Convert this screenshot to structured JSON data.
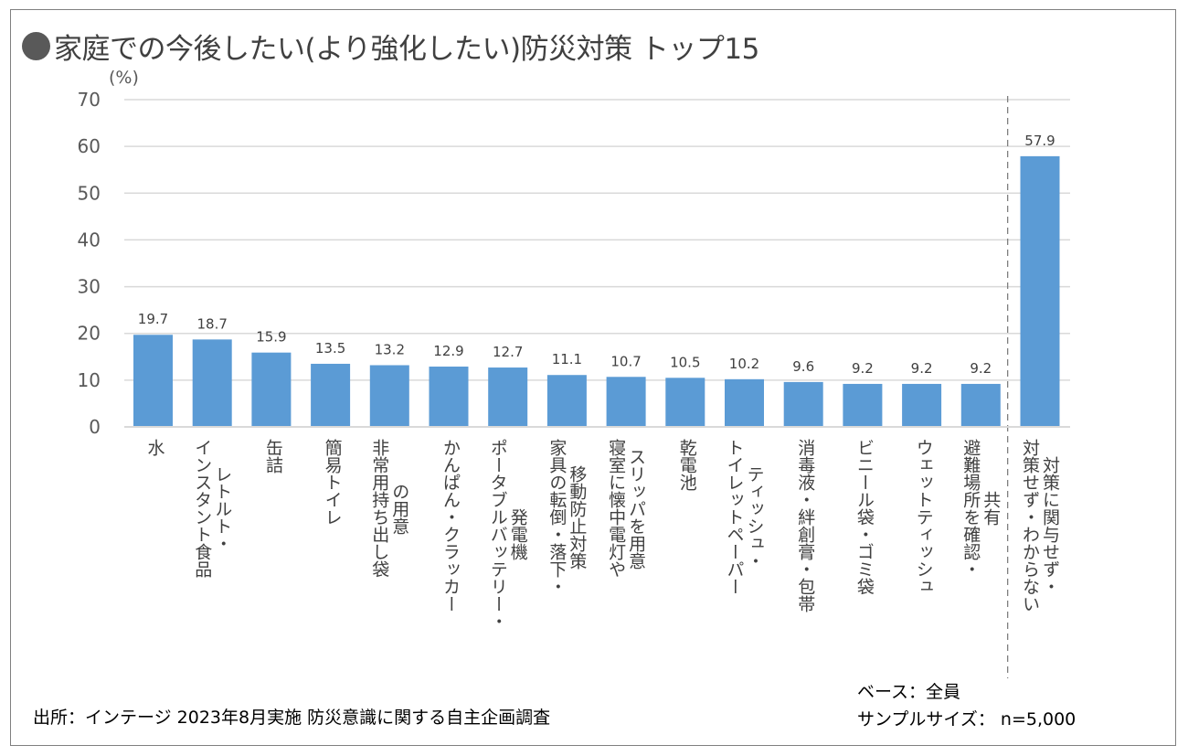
{
  "chart_data": {
    "type": "bar",
    "title": "家庭での今後したい(より強化したい)防災対策 トップ15",
    "title_marker": "●",
    "ylabel": "(%)",
    "xlabel": "",
    "ylim": [
      0,
      70
    ],
    "yticks": [
      0,
      10,
      20,
      30,
      40,
      50,
      60,
      70
    ],
    "grid": true,
    "bar_color": "#5b9bd5",
    "categories": [
      {
        "label": "水",
        "lines": [
          "水"
        ]
      },
      {
        "label": "レトルト・インスタント食品",
        "lines": [
          "インスタント食品",
          "レトルト・"
        ]
      },
      {
        "label": "缶詰",
        "lines": [
          "缶詰"
        ]
      },
      {
        "label": "簡易トイレ",
        "lines": [
          "簡易トイレ"
        ]
      },
      {
        "label": "非常用持ち出し袋の用意",
        "lines": [
          "非常用持ち出し袋",
          "の用意"
        ]
      },
      {
        "label": "かんぱん・クラッカー",
        "lines": [
          "かんぱん・クラッカー"
        ]
      },
      {
        "label": "ポータブルバッテリー・発電機",
        "lines": [
          "ポータブルバッテリー・",
          "発電機"
        ]
      },
      {
        "label": "家具の転倒・落下・移動防止対策",
        "lines": [
          "家具の転倒・落下・",
          "移動防止対策"
        ]
      },
      {
        "label": "寝室に懐中電灯やスリッパを用意",
        "lines": [
          "寝室に懐中電灯や",
          "スリッパを用意"
        ]
      },
      {
        "label": "乾電池",
        "lines": [
          "乾電池"
        ]
      },
      {
        "label": "ティッシュ・トイレットペーパー",
        "lines": [
          "トイレットペーパー",
          "ティッシュ・"
        ]
      },
      {
        "label": "消毒液・絆創膏・包帯",
        "lines": [
          "消毒液・絆創膏・包帯"
        ]
      },
      {
        "label": "ビニール袋・ゴミ袋",
        "lines": [
          "ビニール袋・ゴミ袋"
        ]
      },
      {
        "label": "ウェットティッシュ",
        "lines": [
          "ウェットティッシュ"
        ]
      },
      {
        "label": "避難場所を確認・共有",
        "lines": [
          "避難場所を確認・",
          "共有"
        ]
      },
      {
        "label": "対策に関与せず・対策せず・わからない",
        "lines": [
          "対策せず・わからない",
          "対策に関与せず・"
        ]
      }
    ],
    "values": [
      19.7,
      18.7,
      15.9,
      13.5,
      13.2,
      12.9,
      12.7,
      11.1,
      10.7,
      10.5,
      10.2,
      9.6,
      9.2,
      9.2,
      9.2,
      57.9
    ],
    "value_labels": [
      "19.7",
      "18.7",
      "15.9",
      "13.5",
      "13.2",
      "12.9",
      "12.7",
      "11.1",
      "10.7",
      "10.5",
      "10.2",
      "9.6",
      "9.2",
      "9.2",
      "9.2",
      "57.9"
    ],
    "separator_before_index": 15,
    "annotations": {
      "source": "出所：インテージ 2023年8月実施 防災意識に関する自主企画調査",
      "base": "ベース：全員",
      "sample_size": "サンプルサイズ： n=5,000"
    }
  }
}
